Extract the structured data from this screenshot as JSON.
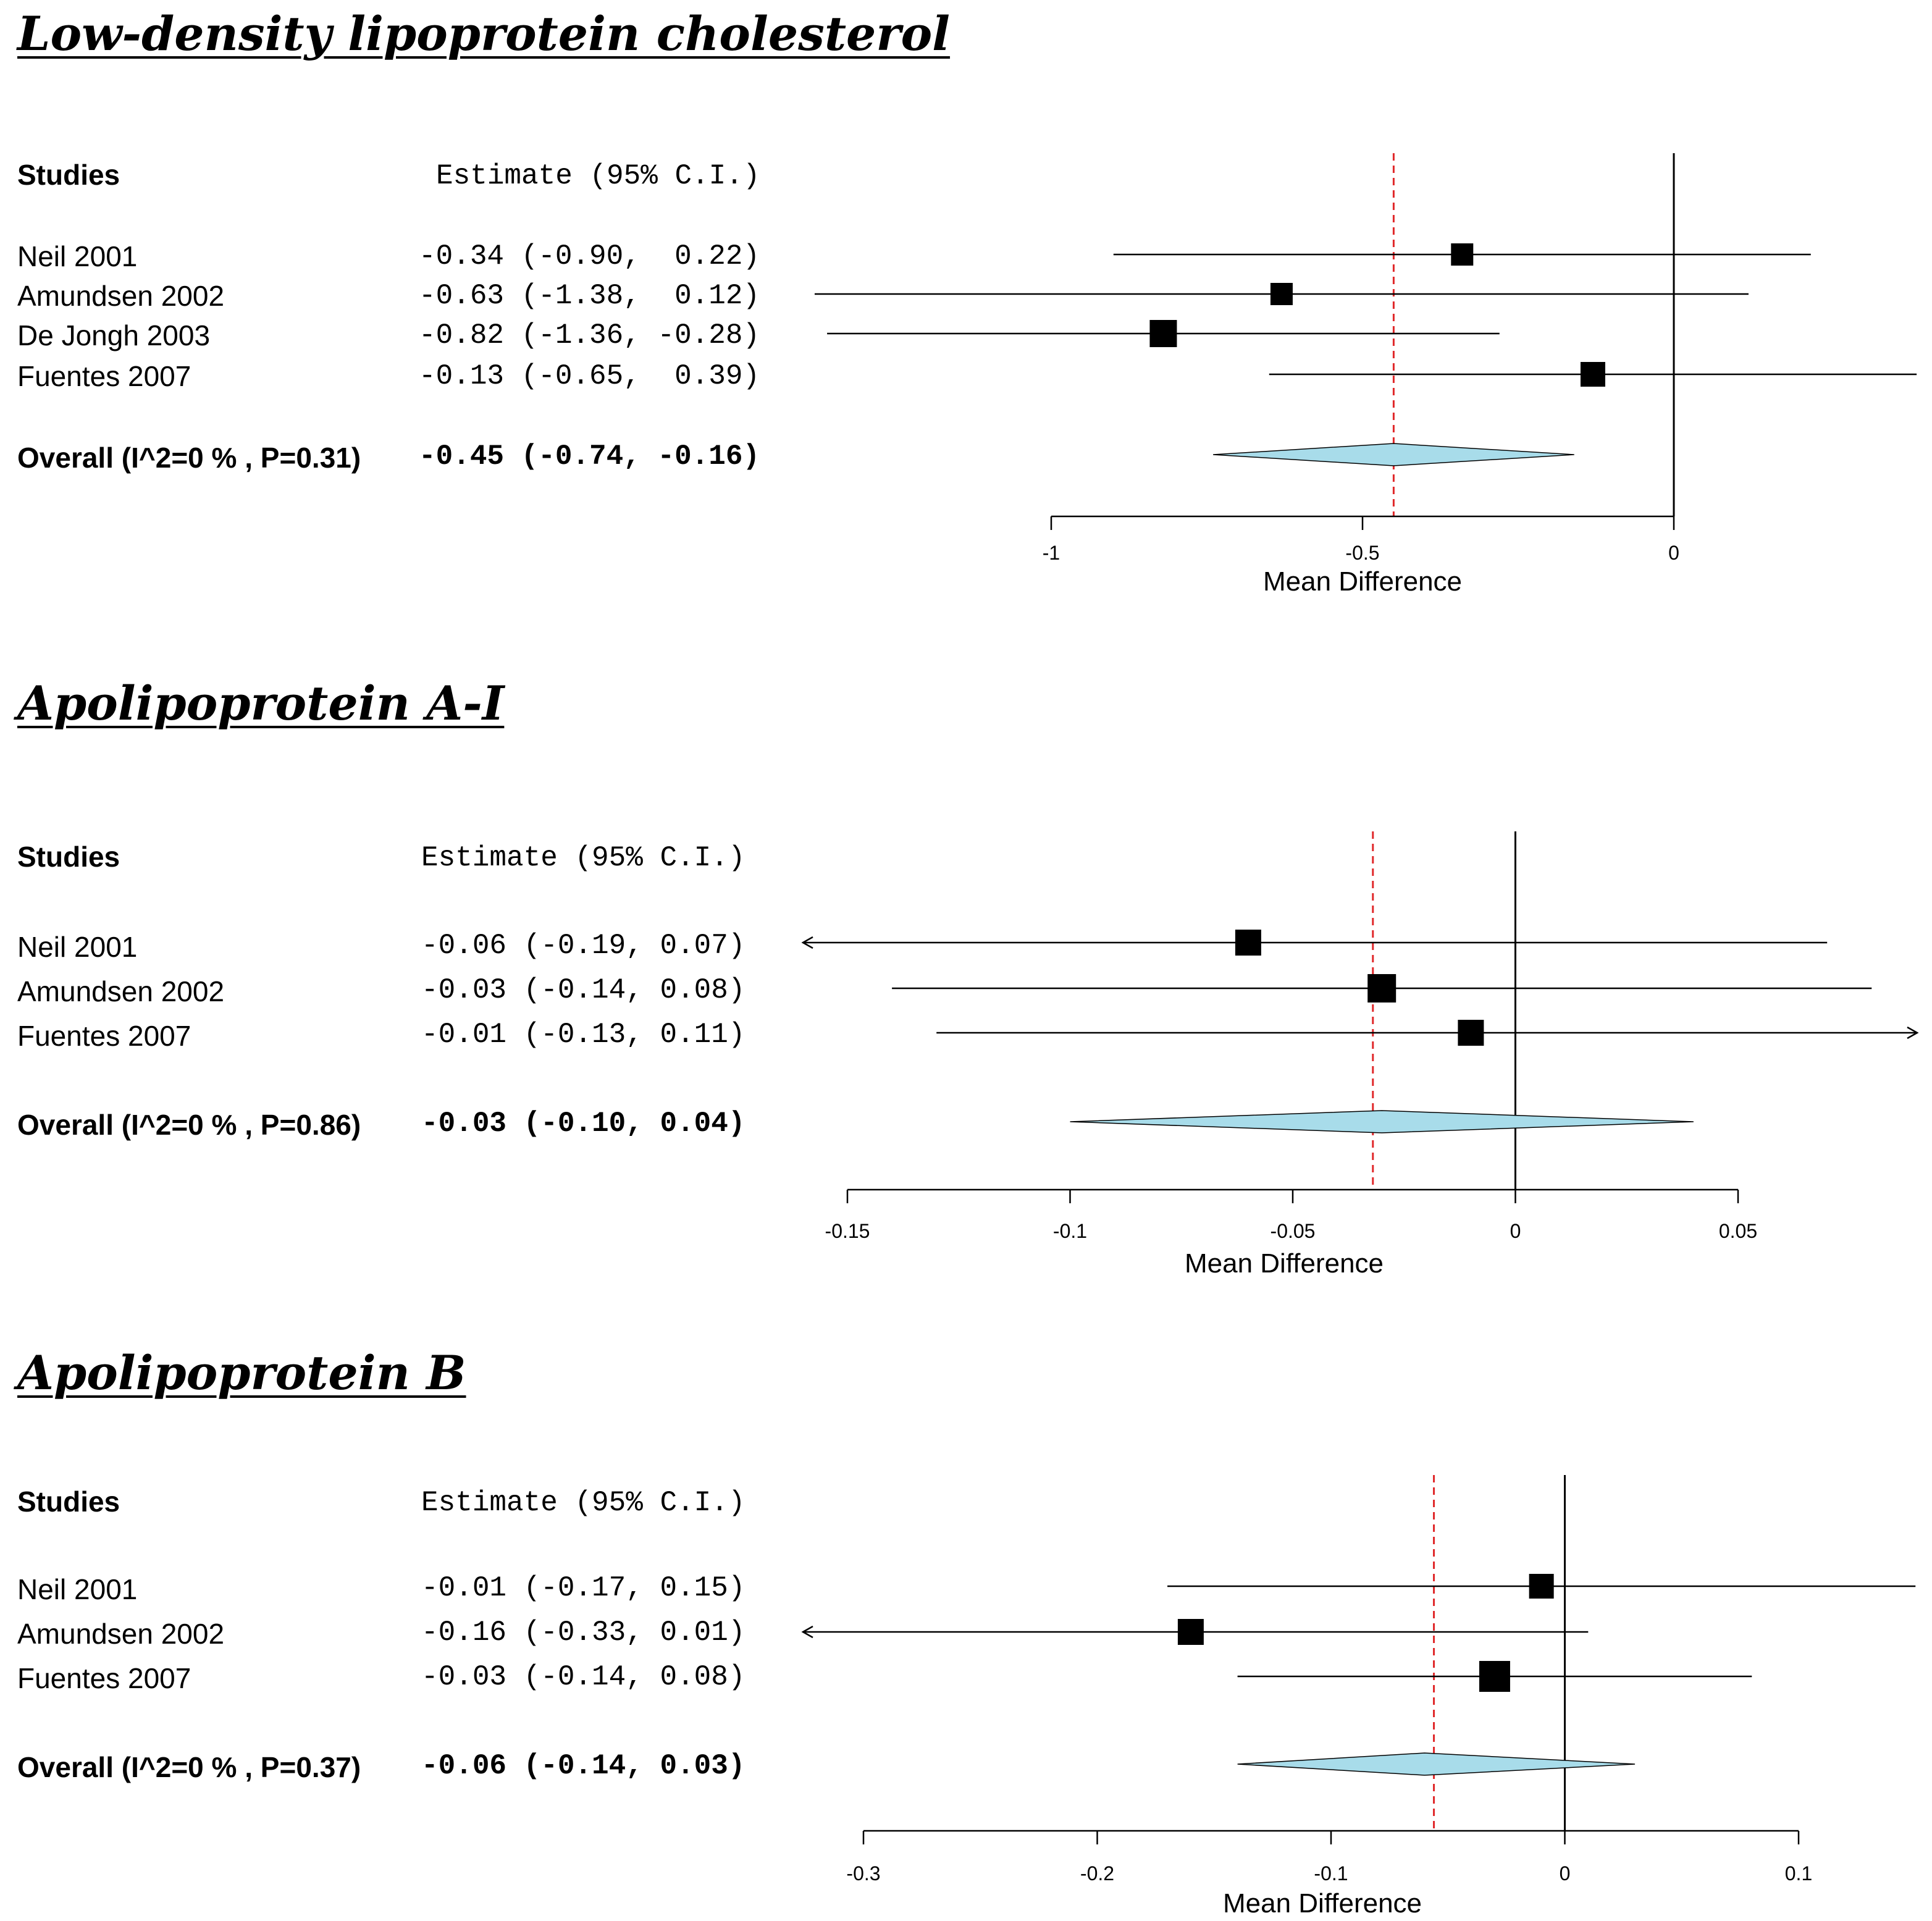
{
  "chart_data": [
    {
      "type": "forest",
      "title": "Low-density lipoprotein cholesterol",
      "header": {
        "studies": "Studies",
        "estimate": "Estimate (95% C.I.)"
      },
      "xlabel": "Mean Difference",
      "xlim": [
        -1,
        0
      ],
      "ticks": [
        -1,
        -0.5,
        0
      ],
      "tick_labels": [
        "-1",
        "-0.5",
        "0"
      ],
      "reference_line": 0,
      "pooled_line": -0.45,
      "studies": [
        {
          "name": "Neil 2001",
          "estimate": -0.34,
          "lower": -0.9,
          "upper": 0.22,
          "text": "-0.34 (-0.90,  0.22)"
        },
        {
          "name": "Amundsen 2002",
          "estimate": -0.63,
          "lower": -1.38,
          "upper": 0.12,
          "text": "-0.63 (-1.38,  0.12)"
        },
        {
          "name": "De Jongh 2003",
          "estimate": -0.82,
          "lower": -1.36,
          "upper": -0.28,
          "text": "-0.82 (-1.36, -0.28)"
        },
        {
          "name": "Fuentes 2007",
          "estimate": -0.13,
          "lower": -0.65,
          "upper": 0.39,
          "text": "-0.13 (-0.65,  0.39)"
        }
      ],
      "overall": {
        "label": "Overall (I^2=0 % , P=0.31)",
        "estimate": -0.45,
        "lower": -0.74,
        "upper": -0.16,
        "text": "-0.45 (-0.74, -0.16)"
      }
    },
    {
      "type": "forest",
      "title": "Apolipoprotein A-I",
      "header": {
        "studies": "Studies",
        "estimate": "Estimate (95% C.I.)"
      },
      "xlabel": "Mean Difference",
      "xlim": [
        -0.15,
        0.05
      ],
      "ticks": [
        -0.15,
        -0.1,
        -0.05,
        0,
        0.05
      ],
      "tick_labels": [
        "-0.15",
        "-0.1",
        "-0.05",
        "0",
        "0.05"
      ],
      "reference_line": 0,
      "pooled_line": -0.032,
      "studies": [
        {
          "name": "Neil 2001",
          "estimate": -0.06,
          "lower": -0.19,
          "upper": 0.07,
          "text": "-0.06 (-0.19, 0.07)"
        },
        {
          "name": "Amundsen 2002",
          "estimate": -0.03,
          "lower": -0.14,
          "upper": 0.08,
          "text": "-0.03 (-0.14, 0.08)"
        },
        {
          "name": "Fuentes 2007",
          "estimate": -0.01,
          "lower": -0.13,
          "upper": 0.11,
          "text": "-0.01 (-0.13, 0.11)"
        }
      ],
      "overall": {
        "label": "Overall (I^2=0 % , P=0.86)",
        "estimate": -0.03,
        "lower": -0.1,
        "upper": 0.04,
        "text": "-0.03 (-0.10, 0.04)"
      }
    },
    {
      "type": "forest",
      "title": "Apolipoprotein B",
      "header": {
        "studies": "Studies",
        "estimate": "Estimate (95% C.I.)"
      },
      "xlabel": "Mean Difference",
      "xlim": [
        -0.3,
        0.1
      ],
      "ticks": [
        -0.3,
        -0.2,
        -0.1,
        0,
        0.1
      ],
      "tick_labels": [
        "-0.3",
        "-0.2",
        "-0.1",
        "0",
        "0.1"
      ],
      "reference_line": 0,
      "pooled_line": -0.056,
      "studies": [
        {
          "name": "Neil 2001",
          "estimate": -0.01,
          "lower": -0.17,
          "upper": 0.15,
          "text": "-0.01 (-0.17, 0.15)"
        },
        {
          "name": "Amundsen 2002",
          "estimate": -0.16,
          "lower": -0.33,
          "upper": 0.01,
          "text": "-0.16 (-0.33, 0.01)"
        },
        {
          "name": "Fuentes 2007",
          "estimate": -0.03,
          "lower": -0.14,
          "upper": 0.08,
          "text": "-0.03 (-0.14, 0.08)"
        }
      ],
      "overall": {
        "label": "Overall (I^2=0 % , P=0.37)",
        "estimate": -0.06,
        "lower": -0.14,
        "upper": 0.03,
        "text": "-0.06 (-0.14, 0.03)"
      }
    }
  ],
  "colors": {
    "diamond_fill": "#a8dcea",
    "pooled_line": "#e0282a",
    "ink": "#000000"
  }
}
